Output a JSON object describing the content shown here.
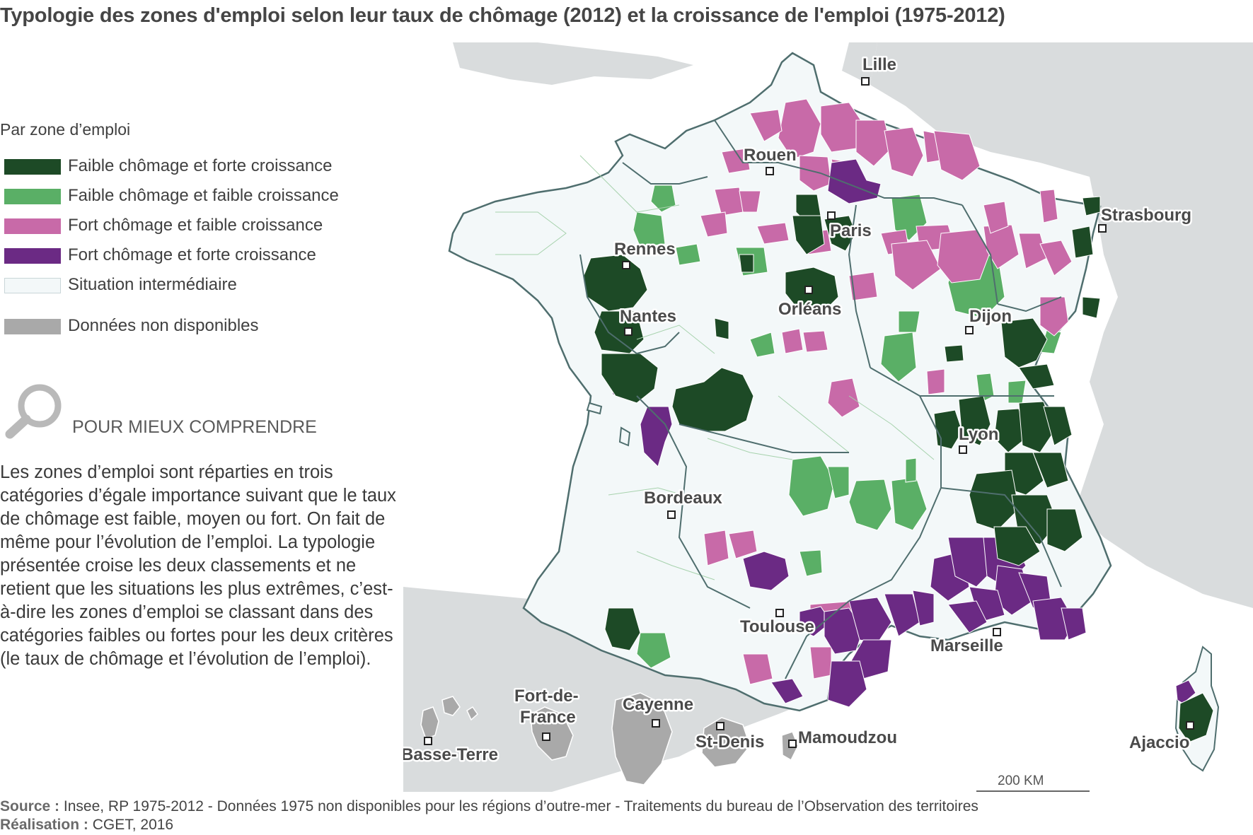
{
  "title": "Typologie des zones d'emploi selon leur taux de chômage (2012) et la croissance de l'emploi (1975-2012)",
  "legend": {
    "heading": "Par zone d’emploi",
    "items": [
      {
        "label": "Faible chômage et forte croissance",
        "color": "#1d4a26"
      },
      {
        "label": "Faible chômage et faible croissance",
        "color": "#5aaf66"
      },
      {
        "label": "Fort chômage et faible croissance",
        "color": "#c86aa8"
      },
      {
        "label": "Fort chômage et forte croissance",
        "color": "#6b2a84"
      },
      {
        "label": "Situation intermédiaire",
        "color": "#f3f8f9"
      },
      {
        "label": "Données non disponibles",
        "color": "#a9a9a9"
      }
    ]
  },
  "understand": {
    "title": "POUR MIEUX COMPRENDRE",
    "text": "Les zones d’emploi sont réparties en trois catégories d’égale importance suivant que le taux de chômage est faible, moyen ou fort. On fait de même pour l’évolution de l’emploi. La typologie présentée croise les deux classements et ne retient que les situations les plus extrêmes, c’est-à-dire les zones d’emploi se classant dans des catégories faibles ou fortes pour les deux critères (le taux de chômage et l’évolution de l’emploi)."
  },
  "cities": {
    "lille": "Lille",
    "rouen": "Rouen",
    "strasbourg": "Strasbourg",
    "paris": "Paris",
    "rennes": "Rennes",
    "orleans": "Orléans",
    "nantes": "Nantes",
    "dijon": "Dijon",
    "lyon": "Lyon",
    "bordeaux": "Bordeaux",
    "toulouse": "Toulouse",
    "marseille": "Marseille",
    "ajaccio": "Ajaccio",
    "basse_terre": "Basse-Terre",
    "fort_de_france_1": "Fort-de-",
    "fort_de_france_2": "France",
    "cayenne": "Cayenne",
    "st_denis": "St-Denis",
    "mamoudzou": "Mamoudzou"
  },
  "scale": "200 KM",
  "footer": {
    "source_label": "Source :",
    "source": "Insee, RP 1975-2012 - Données 1975 non disponibles pour les régions d’outre-mer - Traitements du bureau de l’Observation des territoires",
    "made_label": "Réalisation :",
    "made": "CGET, 2016"
  },
  "colors": {
    "sea": "#ffffff",
    "neighbour_land": "#d9dcdd",
    "france_fill": "#f3f8f9",
    "region_border": "#4f6e6e",
    "zone_border": "#a7d2ad"
  }
}
